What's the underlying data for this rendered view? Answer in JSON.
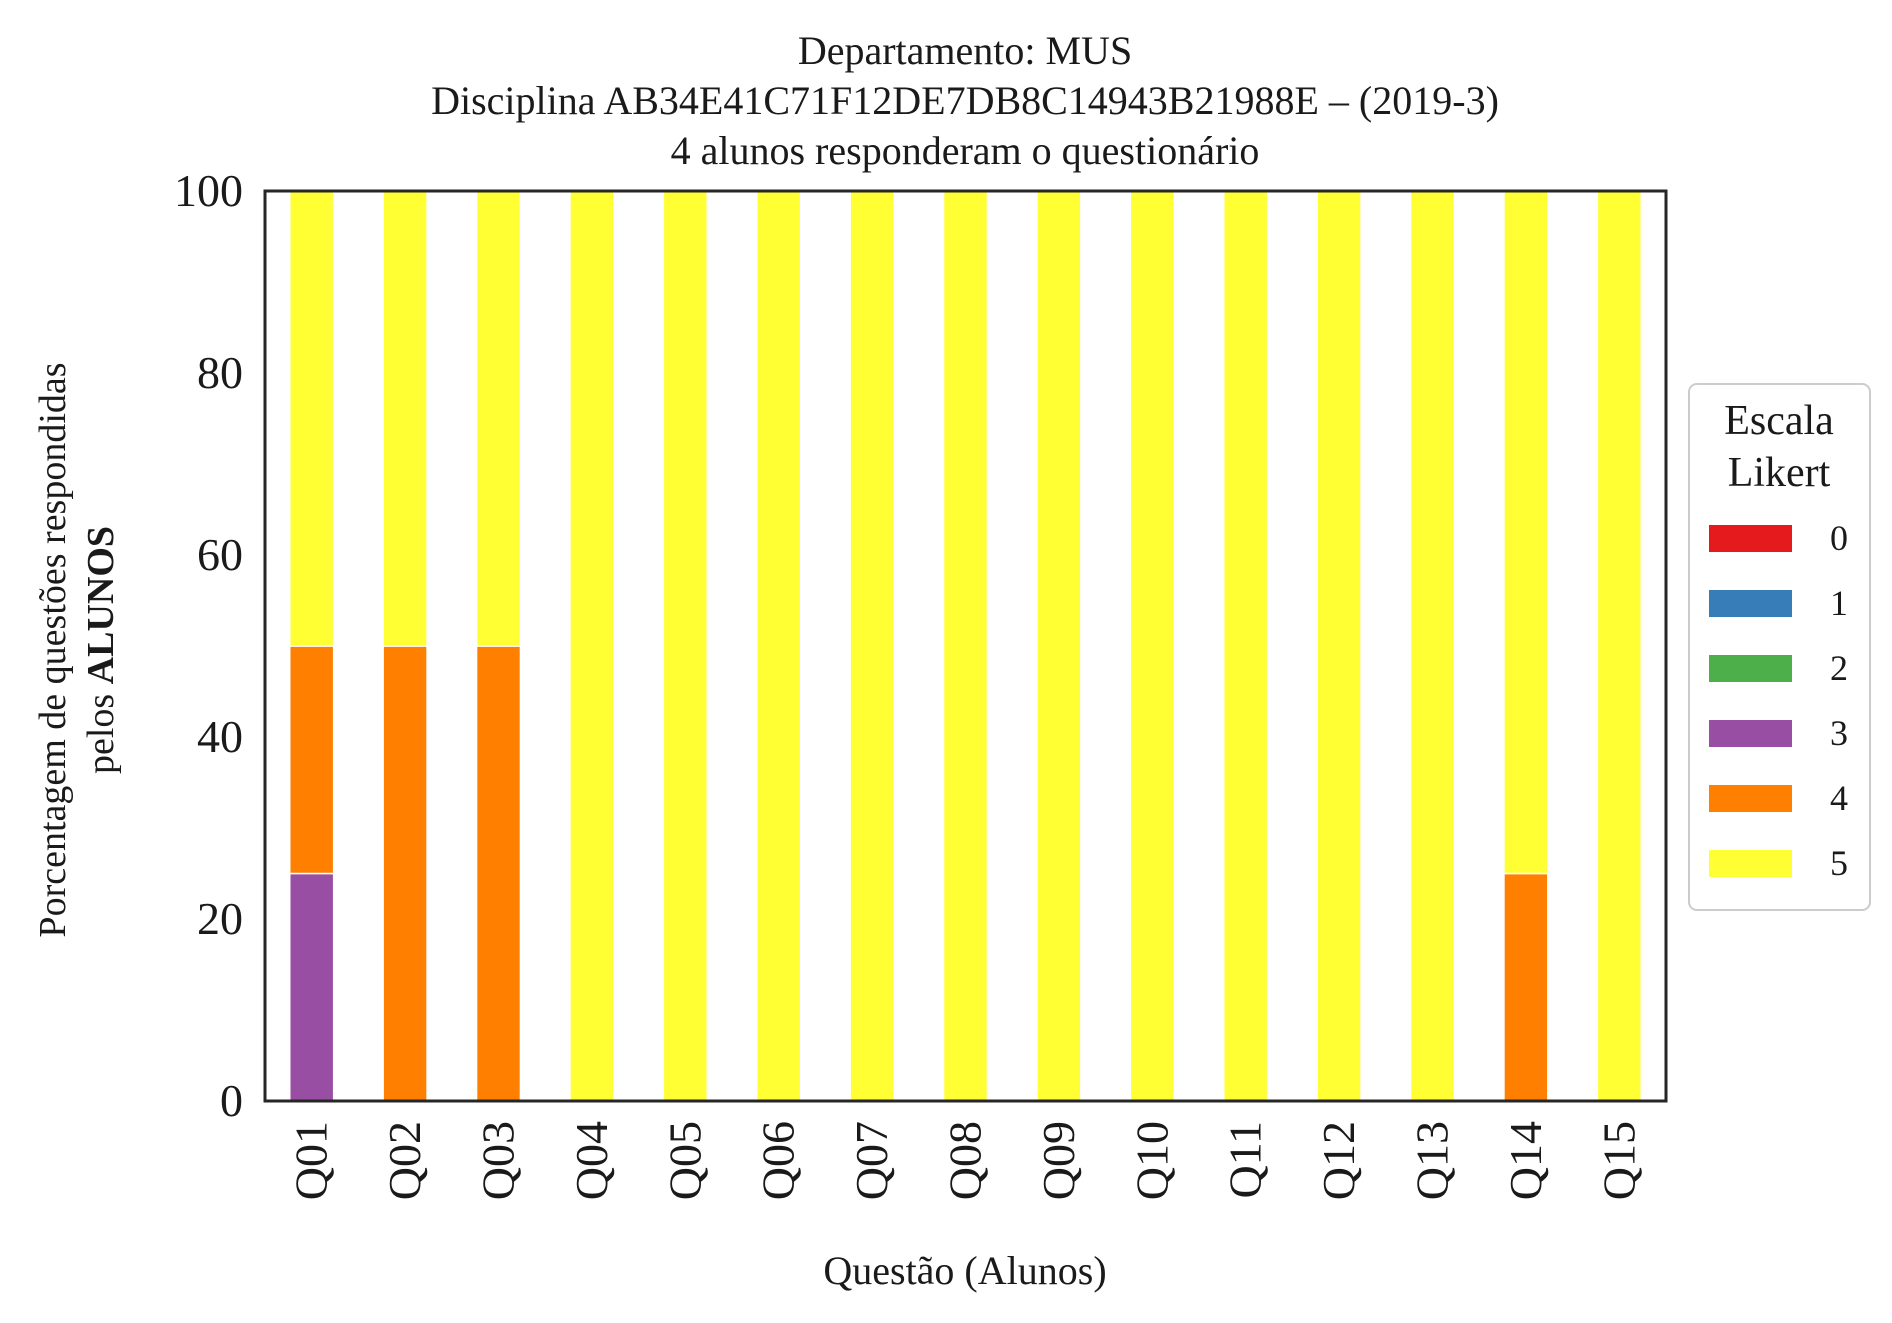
{
  "chart_data": {
    "type": "bar",
    "stacked": true,
    "title_lines": [
      "Departamento: MUS",
      "Disciplina AB34E41C71F12DE7DB8C14943B21988E – (2019-3)",
      "4 alunos responderam o questionário"
    ],
    "xlabel": "Questão (Alunos)",
    "ylabel_line1": "Porcentagem de questões respondidas",
    "ylabel_line2_prefix": "pelos ",
    "ylabel_line2_bold": "ALUNOS",
    "ylim": [
      0,
      100
    ],
    "yticks": [
      "0",
      "20",
      "40",
      "60",
      "80",
      "100"
    ],
    "categories": [
      "Q01",
      "Q02",
      "Q03",
      "Q04",
      "Q05",
      "Q06",
      "Q07",
      "Q08",
      "Q09",
      "Q10",
      "Q11",
      "Q12",
      "Q13",
      "Q14",
      "Q15"
    ],
    "legend": {
      "title_line1": "Escala",
      "title_line2": "Likert",
      "placement": "center-right, outside plot"
    },
    "series": [
      {
        "name": "0",
        "color": "#e41a1c",
        "values": [
          0,
          0,
          0,
          0,
          0,
          0,
          0,
          0,
          0,
          0,
          0,
          0,
          0,
          0,
          0
        ]
      },
      {
        "name": "1",
        "color": "#377eb8",
        "values": [
          0,
          0,
          0,
          0,
          0,
          0,
          0,
          0,
          0,
          0,
          0,
          0,
          0,
          0,
          0
        ]
      },
      {
        "name": "2",
        "color": "#4daf4a",
        "values": [
          0,
          0,
          0,
          0,
          0,
          0,
          0,
          0,
          0,
          0,
          0,
          0,
          0,
          0,
          0
        ]
      },
      {
        "name": "3",
        "color": "#984ea3",
        "values": [
          25,
          0,
          0,
          0,
          0,
          0,
          0,
          0,
          0,
          0,
          0,
          0,
          0,
          0,
          0
        ]
      },
      {
        "name": "4",
        "color": "#ff7f00",
        "values": [
          25,
          50,
          50,
          0,
          0,
          0,
          0,
          0,
          0,
          0,
          0,
          0,
          0,
          25,
          0
        ]
      },
      {
        "name": "5",
        "color": "#ffff33",
        "values": [
          50,
          50,
          50,
          100,
          100,
          100,
          100,
          100,
          100,
          100,
          100,
          100,
          100,
          75,
          100
        ]
      }
    ],
    "grid": false
  }
}
